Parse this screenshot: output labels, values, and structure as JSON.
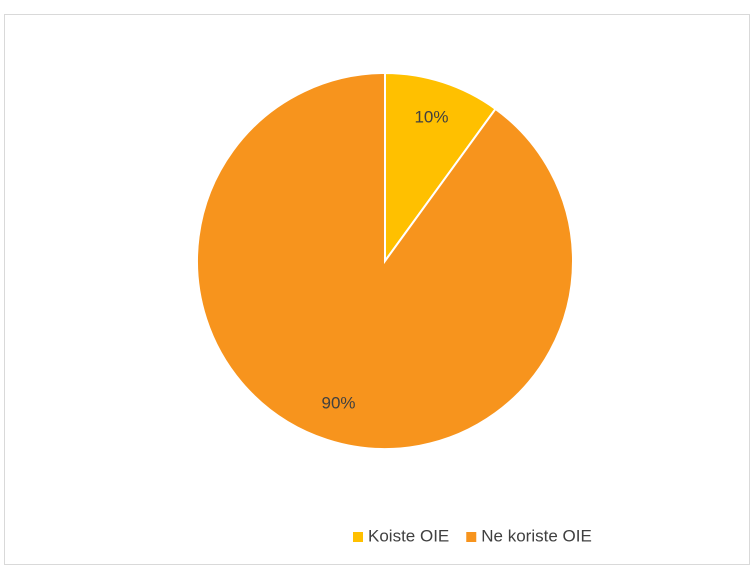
{
  "chart_data": {
    "type": "pie",
    "categories": [
      "Koiste OIE",
      "Ne koriste OIE"
    ],
    "values": [
      10,
      90
    ],
    "value_labels": [
      "10%",
      "90%"
    ],
    "colors": [
      "#ffc000",
      "#f7941d"
    ],
    "legend": "bottom"
  }
}
